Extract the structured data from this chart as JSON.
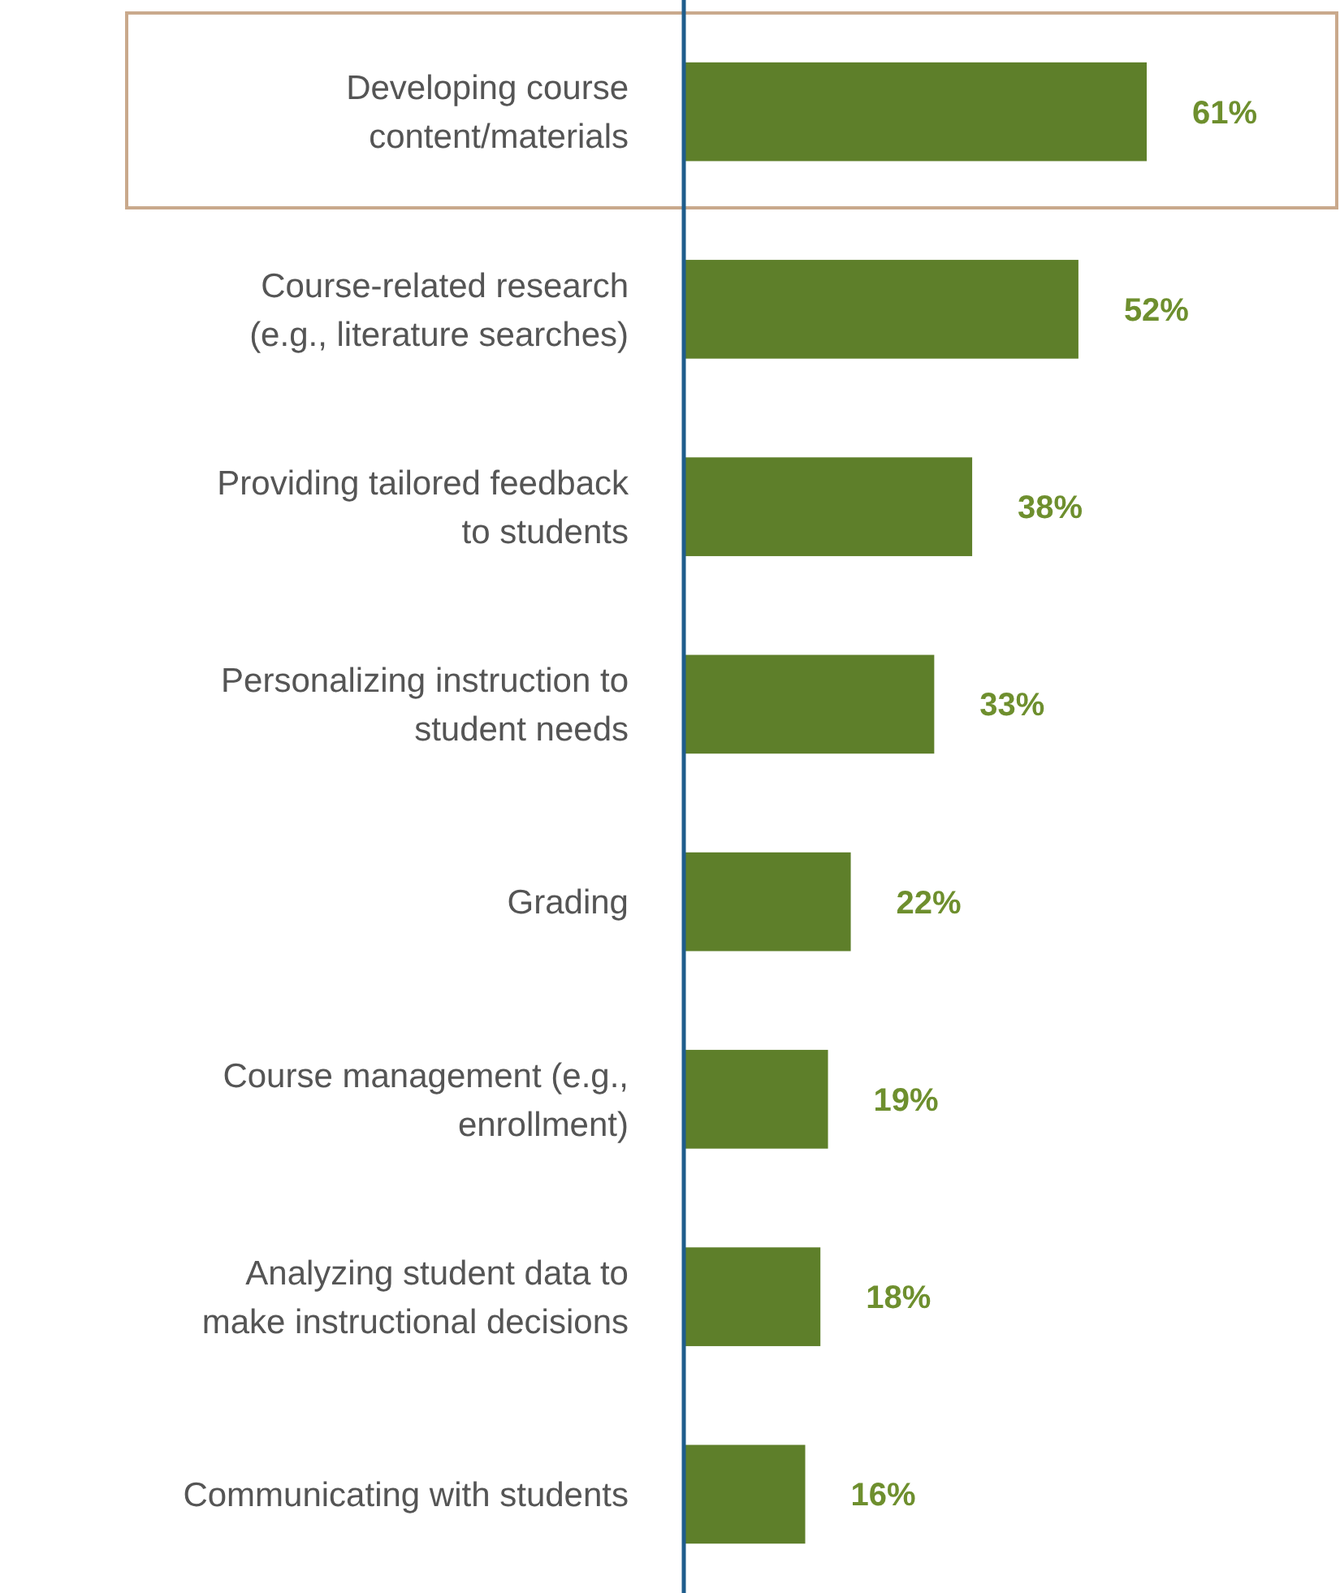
{
  "chart_data": {
    "type": "bar",
    "orientation": "horizontal",
    "data_labels": true,
    "categories": [
      "Developing course content/materials",
      "Course-related research (e.g., literature searches)",
      "Providing tailored feedback to students",
      "Personalizing instruction to student needs",
      "Grading",
      "Course management (e.g., enrollment)",
      "Analyzing student data to make instructional decisions",
      "Communicating with students"
    ],
    "values": [
      61,
      52,
      38,
      33,
      22,
      19,
      18,
      16
    ],
    "value_labels": [
      "61%",
      "52%",
      "38%",
      "33%",
      "22%",
      "19%",
      "18%",
      "16%"
    ],
    "color": "#5e7f2a",
    "tick_labels": "y"
  }
}
